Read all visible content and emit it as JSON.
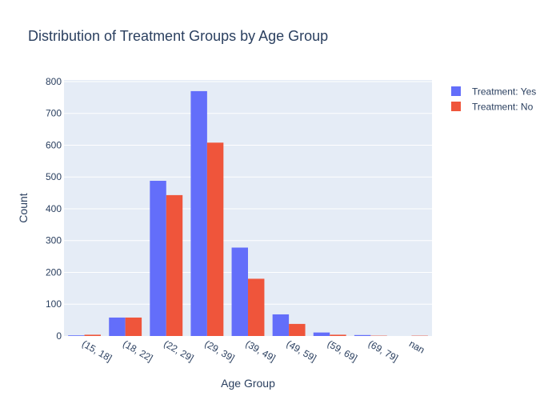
{
  "colors": {
    "plot_bg": "#E5ECF6",
    "grid": "#ffffff",
    "text": "#2a3f5f",
    "series_yes": "#636EFA",
    "series_no": "#EF553B"
  },
  "chart_data": {
    "type": "bar",
    "title": "Distribution of Treatment Groups by Age Group",
    "xlabel": "Age Group",
    "ylabel": "Count",
    "ylim": [
      0,
      805
    ],
    "yticks": [
      0,
      100,
      200,
      300,
      400,
      500,
      600,
      700,
      800
    ],
    "grid": true,
    "legend_position": "top-right",
    "categories": [
      "(15, 18]",
      "(18, 22]",
      "(22, 29]",
      "(29, 39]",
      "(39, 49]",
      "(49, 59]",
      "(59, 69]",
      "(69, 79]",
      "nan"
    ],
    "series": [
      {
        "name": "Treatment: Yes",
        "values": [
          2,
          58,
          488,
          770,
          278,
          68,
          11,
          3,
          0
        ]
      },
      {
        "name": "Treatment: No",
        "values": [
          4,
          58,
          443,
          608,
          180,
          38,
          4,
          1,
          1
        ]
      }
    ]
  }
}
